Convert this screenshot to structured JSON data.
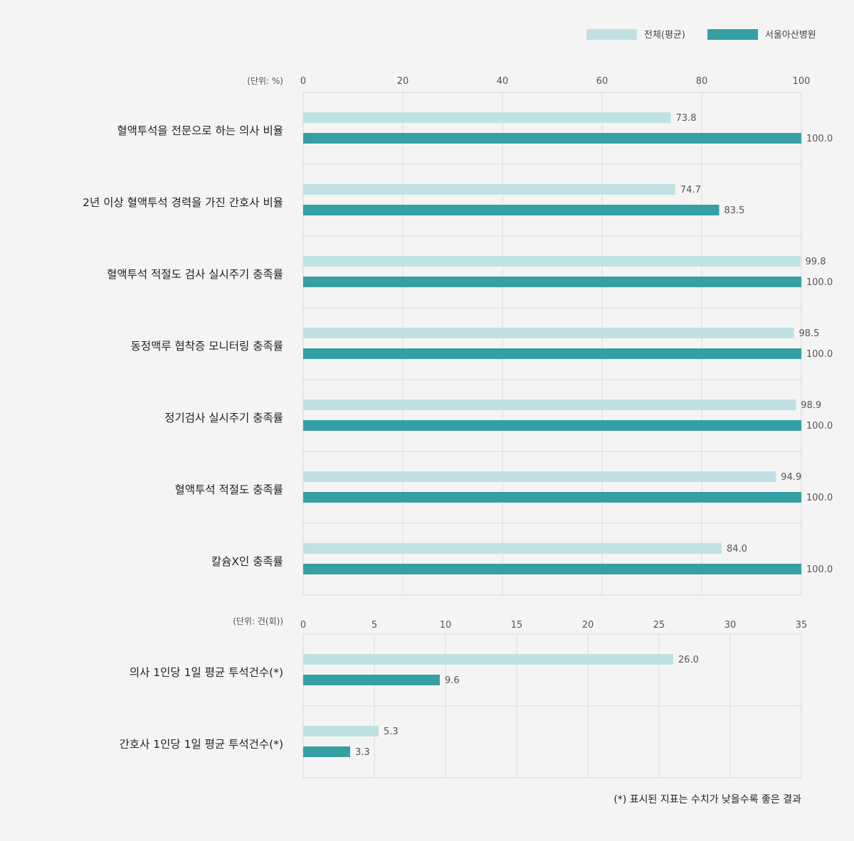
{
  "legend": [
    {
      "label": "전체(평균)",
      "color": "#bfe1e3"
    },
    {
      "label": "서울아산병원",
      "color": "#35a0a3"
    }
  ],
  "footnote": "(*) 표시된 지표는 수치가 낮을수록 좋은 결과",
  "chart_data": [
    {
      "type": "bar",
      "orientation": "horizontal",
      "unit_label": "(단위: %)",
      "xlim": [
        0,
        100
      ],
      "ticks": [
        "0",
        "20",
        "40",
        "60",
        "80",
        "100"
      ],
      "categories": [
        "혈액투석을 전문으로 하는 의사 비율",
        "2년 이상 혈액투석 경력을 가진 간호사 비율",
        "혈액투석 적절도 검사 실시주기 충족률",
        "동정맥루 협착증 모니터링 충족률",
        "정기검사 실시주기 충족률",
        "혈액투석 적절도 충족률",
        "칼슘X인 충족률"
      ],
      "series": [
        {
          "name": "전체(평균)",
          "values": [
            73.8,
            74.7,
            99.8,
            98.5,
            98.9,
            94.9,
            84.0
          ],
          "labels": [
            "73.8",
            "74.7",
            "99.8",
            "98.5",
            "98.9",
            "94.9",
            "84.0"
          ]
        },
        {
          "name": "서울아산병원",
          "values": [
            100.0,
            83.5,
            100.0,
            100.0,
            100.0,
            100.0,
            100.0
          ],
          "labels": [
            "100.0",
            "83.5",
            "100.0",
            "100.0",
            "100.0",
            "100.0",
            "100.0"
          ]
        }
      ],
      "grid": true
    },
    {
      "type": "bar",
      "orientation": "horizontal",
      "unit_label": "(단위: 건(회))",
      "xlim": [
        0,
        35
      ],
      "ticks": [
        "0",
        "5",
        "10",
        "15",
        "20",
        "25",
        "30",
        "35"
      ],
      "categories": [
        "의사 1인당 1일 평균 투석건수(*)",
        "간호사 1인당 1일 평균 투석건수(*)"
      ],
      "series": [
        {
          "name": "전체(평균)",
          "values": [
            26.0,
            5.3
          ],
          "labels": [
            "26.0",
            "5.3"
          ]
        },
        {
          "name": "서울아산병원",
          "values": [
            9.6,
            3.3
          ],
          "labels": [
            "9.6",
            "3.3"
          ]
        }
      ],
      "grid": true
    }
  ]
}
